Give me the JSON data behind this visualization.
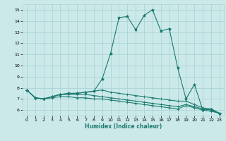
{
  "title": "",
  "xlabel": "Humidex (Indice chaleur)",
  "ylabel": "",
  "background_color": "#cce9ea",
  "grid_color": "#aad4d6",
  "line_color": "#1a7a6e",
  "x_data": [
    0,
    1,
    2,
    3,
    4,
    5,
    6,
    7,
    8,
    9,
    10,
    11,
    12,
    13,
    14,
    15,
    16,
    17,
    18,
    19,
    20,
    21,
    22,
    23
  ],
  "series": [
    [
      7.8,
      7.1,
      7.0,
      7.2,
      7.4,
      7.5,
      7.5,
      7.6,
      7.7,
      8.8,
      11.1,
      14.3,
      14.4,
      13.2,
      14.5,
      15.0,
      13.1,
      13.3,
      9.8,
      7.0,
      8.3,
      6.0,
      6.1,
      5.7
    ],
    [
      7.8,
      7.1,
      7.0,
      7.2,
      7.4,
      7.5,
      7.5,
      7.6,
      7.7,
      7.8,
      7.6,
      7.5,
      7.4,
      7.3,
      7.2,
      7.1,
      7.0,
      6.9,
      6.8,
      6.8,
      6.5,
      6.2,
      6.1,
      5.7
    ],
    [
      7.8,
      7.1,
      7.0,
      7.2,
      7.4,
      7.4,
      7.4,
      7.4,
      7.3,
      7.2,
      7.1,
      7.0,
      6.9,
      6.8,
      6.7,
      6.6,
      6.5,
      6.4,
      6.3,
      6.5,
      6.3,
      6.1,
      6.0,
      5.7
    ],
    [
      7.8,
      7.1,
      7.0,
      7.1,
      7.2,
      7.2,
      7.1,
      7.1,
      7.0,
      7.0,
      6.9,
      6.8,
      6.7,
      6.6,
      6.5,
      6.4,
      6.3,
      6.2,
      6.1,
      6.4,
      6.2,
      6.0,
      5.9,
      5.7
    ]
  ],
  "xlim": [
    -0.5,
    23.5
  ],
  "ylim": [
    5.5,
    15.5
  ],
  "yticks": [
    6,
    7,
    8,
    9,
    10,
    11,
    12,
    13,
    14,
    15
  ],
  "xticks": [
    0,
    1,
    2,
    3,
    4,
    5,
    6,
    7,
    8,
    9,
    10,
    11,
    12,
    13,
    14,
    15,
    16,
    17,
    18,
    19,
    20,
    21,
    22,
    23
  ],
  "xlabel_fontsize": 5.5,
  "tick_fontsize": 4.5,
  "linewidth": 0.8,
  "marker_main": "*",
  "marker_other": "+",
  "markersize_main": 3.0,
  "markersize_other": 2.5
}
